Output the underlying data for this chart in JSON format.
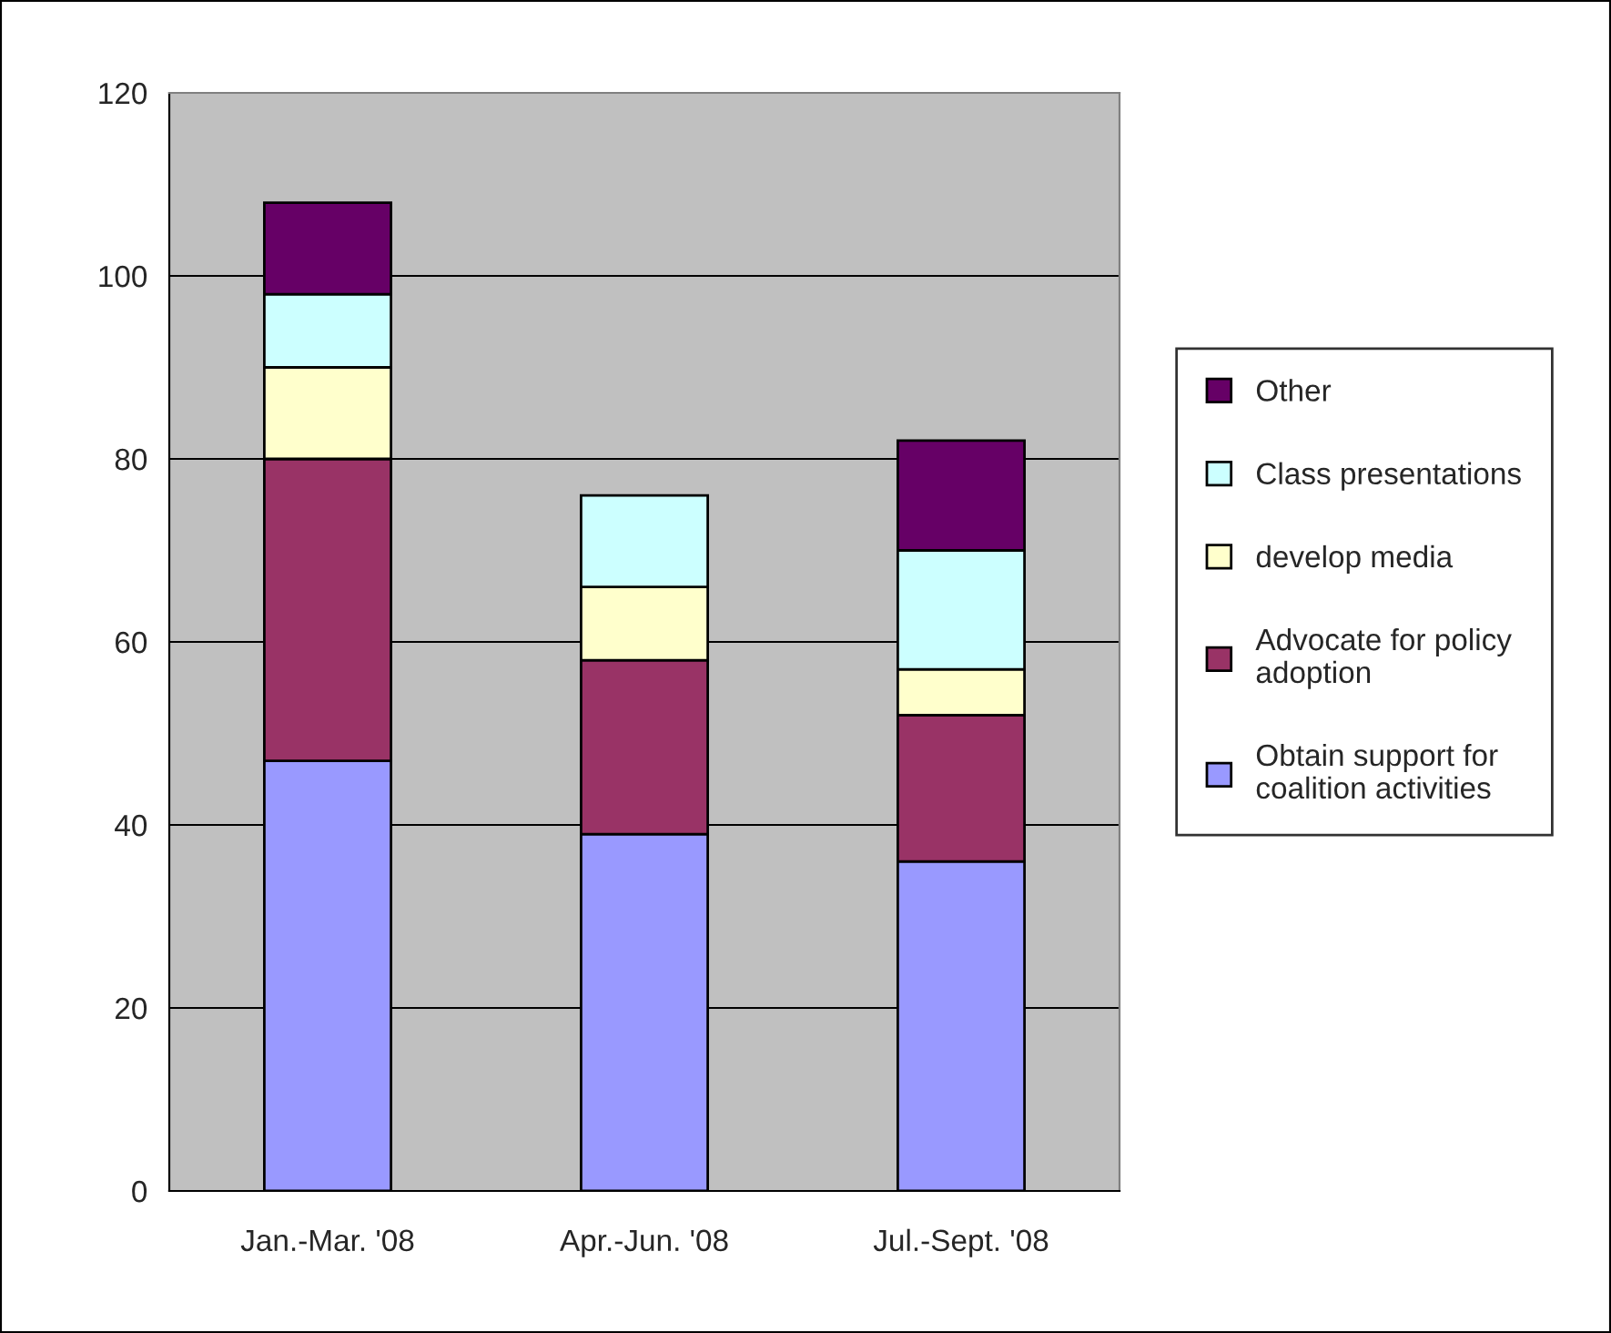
{
  "chart_data": {
    "type": "bar",
    "stacked": true,
    "categories": [
      "Jan.-Mar. '08",
      "Apr.-Jun. '08",
      "Jul.-Sept. '08"
    ],
    "series": [
      {
        "name": "Obtain support for\ncoalition activities",
        "color": "#9999ff",
        "values": [
          47,
          39,
          36
        ]
      },
      {
        "name": "Advocate for policy\nadoption",
        "color": "#993366",
        "values": [
          33,
          19,
          16
        ]
      },
      {
        "name": "develop media",
        "color": "#ffffcc",
        "values": [
          10,
          8,
          5
        ]
      },
      {
        "name": "Class presentations",
        "color": "#ccffff",
        "values": [
          8,
          10,
          13
        ]
      },
      {
        "name": "Other",
        "color": "#660066",
        "values": [
          10,
          null,
          12
        ]
      }
    ],
    "ylim": [
      0,
      120
    ],
    "yticks": [
      0,
      20,
      40,
      60,
      80,
      100,
      120
    ],
    "grid": "y",
    "legend": "right"
  }
}
